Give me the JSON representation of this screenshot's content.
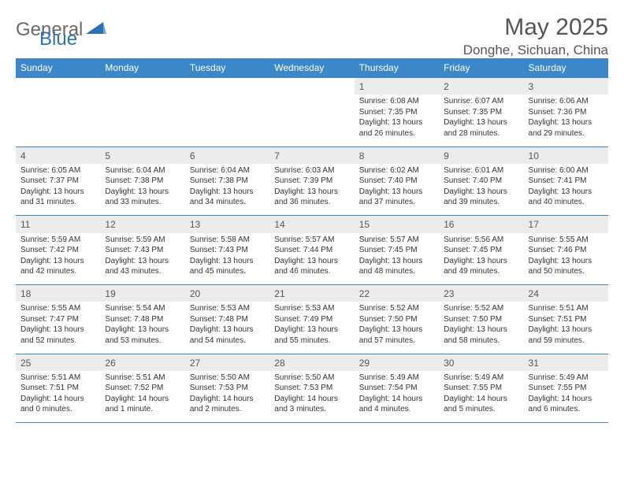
{
  "logo": {
    "part1": "General",
    "part2": "Blue"
  },
  "title": "May 2025",
  "location": "Donghe, Sichuan, China",
  "colors": {
    "header_bg": "#3b87c8",
    "header_text": "#ffffff",
    "daynum_bg": "#ececec",
    "rule": "#3b87c8",
    "title_color": "#555555",
    "logo_gray": "#6a6a6a",
    "logo_blue": "#2a72b5"
  },
  "weekdays": [
    "Sunday",
    "Monday",
    "Tuesday",
    "Wednesday",
    "Thursday",
    "Friday",
    "Saturday"
  ],
  "weeks": [
    [
      null,
      null,
      null,
      null,
      {
        "n": "1",
        "sr": "6:08 AM",
        "ss": "7:35 PM",
        "dl": "13 hours and 26 minutes."
      },
      {
        "n": "2",
        "sr": "6:07 AM",
        "ss": "7:35 PM",
        "dl": "13 hours and 28 minutes."
      },
      {
        "n": "3",
        "sr": "6:06 AM",
        "ss": "7:36 PM",
        "dl": "13 hours and 29 minutes."
      }
    ],
    [
      {
        "n": "4",
        "sr": "6:05 AM",
        "ss": "7:37 PM",
        "dl": "13 hours and 31 minutes."
      },
      {
        "n": "5",
        "sr": "6:04 AM",
        "ss": "7:38 PM",
        "dl": "13 hours and 33 minutes."
      },
      {
        "n": "6",
        "sr": "6:04 AM",
        "ss": "7:38 PM",
        "dl": "13 hours and 34 minutes."
      },
      {
        "n": "7",
        "sr": "6:03 AM",
        "ss": "7:39 PM",
        "dl": "13 hours and 36 minutes."
      },
      {
        "n": "8",
        "sr": "6:02 AM",
        "ss": "7:40 PM",
        "dl": "13 hours and 37 minutes."
      },
      {
        "n": "9",
        "sr": "6:01 AM",
        "ss": "7:40 PM",
        "dl": "13 hours and 39 minutes."
      },
      {
        "n": "10",
        "sr": "6:00 AM",
        "ss": "7:41 PM",
        "dl": "13 hours and 40 minutes."
      }
    ],
    [
      {
        "n": "11",
        "sr": "5:59 AM",
        "ss": "7:42 PM",
        "dl": "13 hours and 42 minutes."
      },
      {
        "n": "12",
        "sr": "5:59 AM",
        "ss": "7:43 PM",
        "dl": "13 hours and 43 minutes."
      },
      {
        "n": "13",
        "sr": "5:58 AM",
        "ss": "7:43 PM",
        "dl": "13 hours and 45 minutes."
      },
      {
        "n": "14",
        "sr": "5:57 AM",
        "ss": "7:44 PM",
        "dl": "13 hours and 46 minutes."
      },
      {
        "n": "15",
        "sr": "5:57 AM",
        "ss": "7:45 PM",
        "dl": "13 hours and 48 minutes."
      },
      {
        "n": "16",
        "sr": "5:56 AM",
        "ss": "7:45 PM",
        "dl": "13 hours and 49 minutes."
      },
      {
        "n": "17",
        "sr": "5:55 AM",
        "ss": "7:46 PM",
        "dl": "13 hours and 50 minutes."
      }
    ],
    [
      {
        "n": "18",
        "sr": "5:55 AM",
        "ss": "7:47 PM",
        "dl": "13 hours and 52 minutes."
      },
      {
        "n": "19",
        "sr": "5:54 AM",
        "ss": "7:48 PM",
        "dl": "13 hours and 53 minutes."
      },
      {
        "n": "20",
        "sr": "5:53 AM",
        "ss": "7:48 PM",
        "dl": "13 hours and 54 minutes."
      },
      {
        "n": "21",
        "sr": "5:53 AM",
        "ss": "7:49 PM",
        "dl": "13 hours and 55 minutes."
      },
      {
        "n": "22",
        "sr": "5:52 AM",
        "ss": "7:50 PM",
        "dl": "13 hours and 57 minutes."
      },
      {
        "n": "23",
        "sr": "5:52 AM",
        "ss": "7:50 PM",
        "dl": "13 hours and 58 minutes."
      },
      {
        "n": "24",
        "sr": "5:51 AM",
        "ss": "7:51 PM",
        "dl": "13 hours and 59 minutes."
      }
    ],
    [
      {
        "n": "25",
        "sr": "5:51 AM",
        "ss": "7:51 PM",
        "dl": "14 hours and 0 minutes."
      },
      {
        "n": "26",
        "sr": "5:51 AM",
        "ss": "7:52 PM",
        "dl": "14 hours and 1 minute."
      },
      {
        "n": "27",
        "sr": "5:50 AM",
        "ss": "7:53 PM",
        "dl": "14 hours and 2 minutes."
      },
      {
        "n": "28",
        "sr": "5:50 AM",
        "ss": "7:53 PM",
        "dl": "14 hours and 3 minutes."
      },
      {
        "n": "29",
        "sr": "5:49 AM",
        "ss": "7:54 PM",
        "dl": "14 hours and 4 minutes."
      },
      {
        "n": "30",
        "sr": "5:49 AM",
        "ss": "7:55 PM",
        "dl": "14 hours and 5 minutes."
      },
      {
        "n": "31",
        "sr": "5:49 AM",
        "ss": "7:55 PM",
        "dl": "14 hours and 6 minutes."
      }
    ]
  ],
  "labels": {
    "sunrise": "Sunrise:",
    "sunset": "Sunset:",
    "daylight": "Daylight:"
  }
}
